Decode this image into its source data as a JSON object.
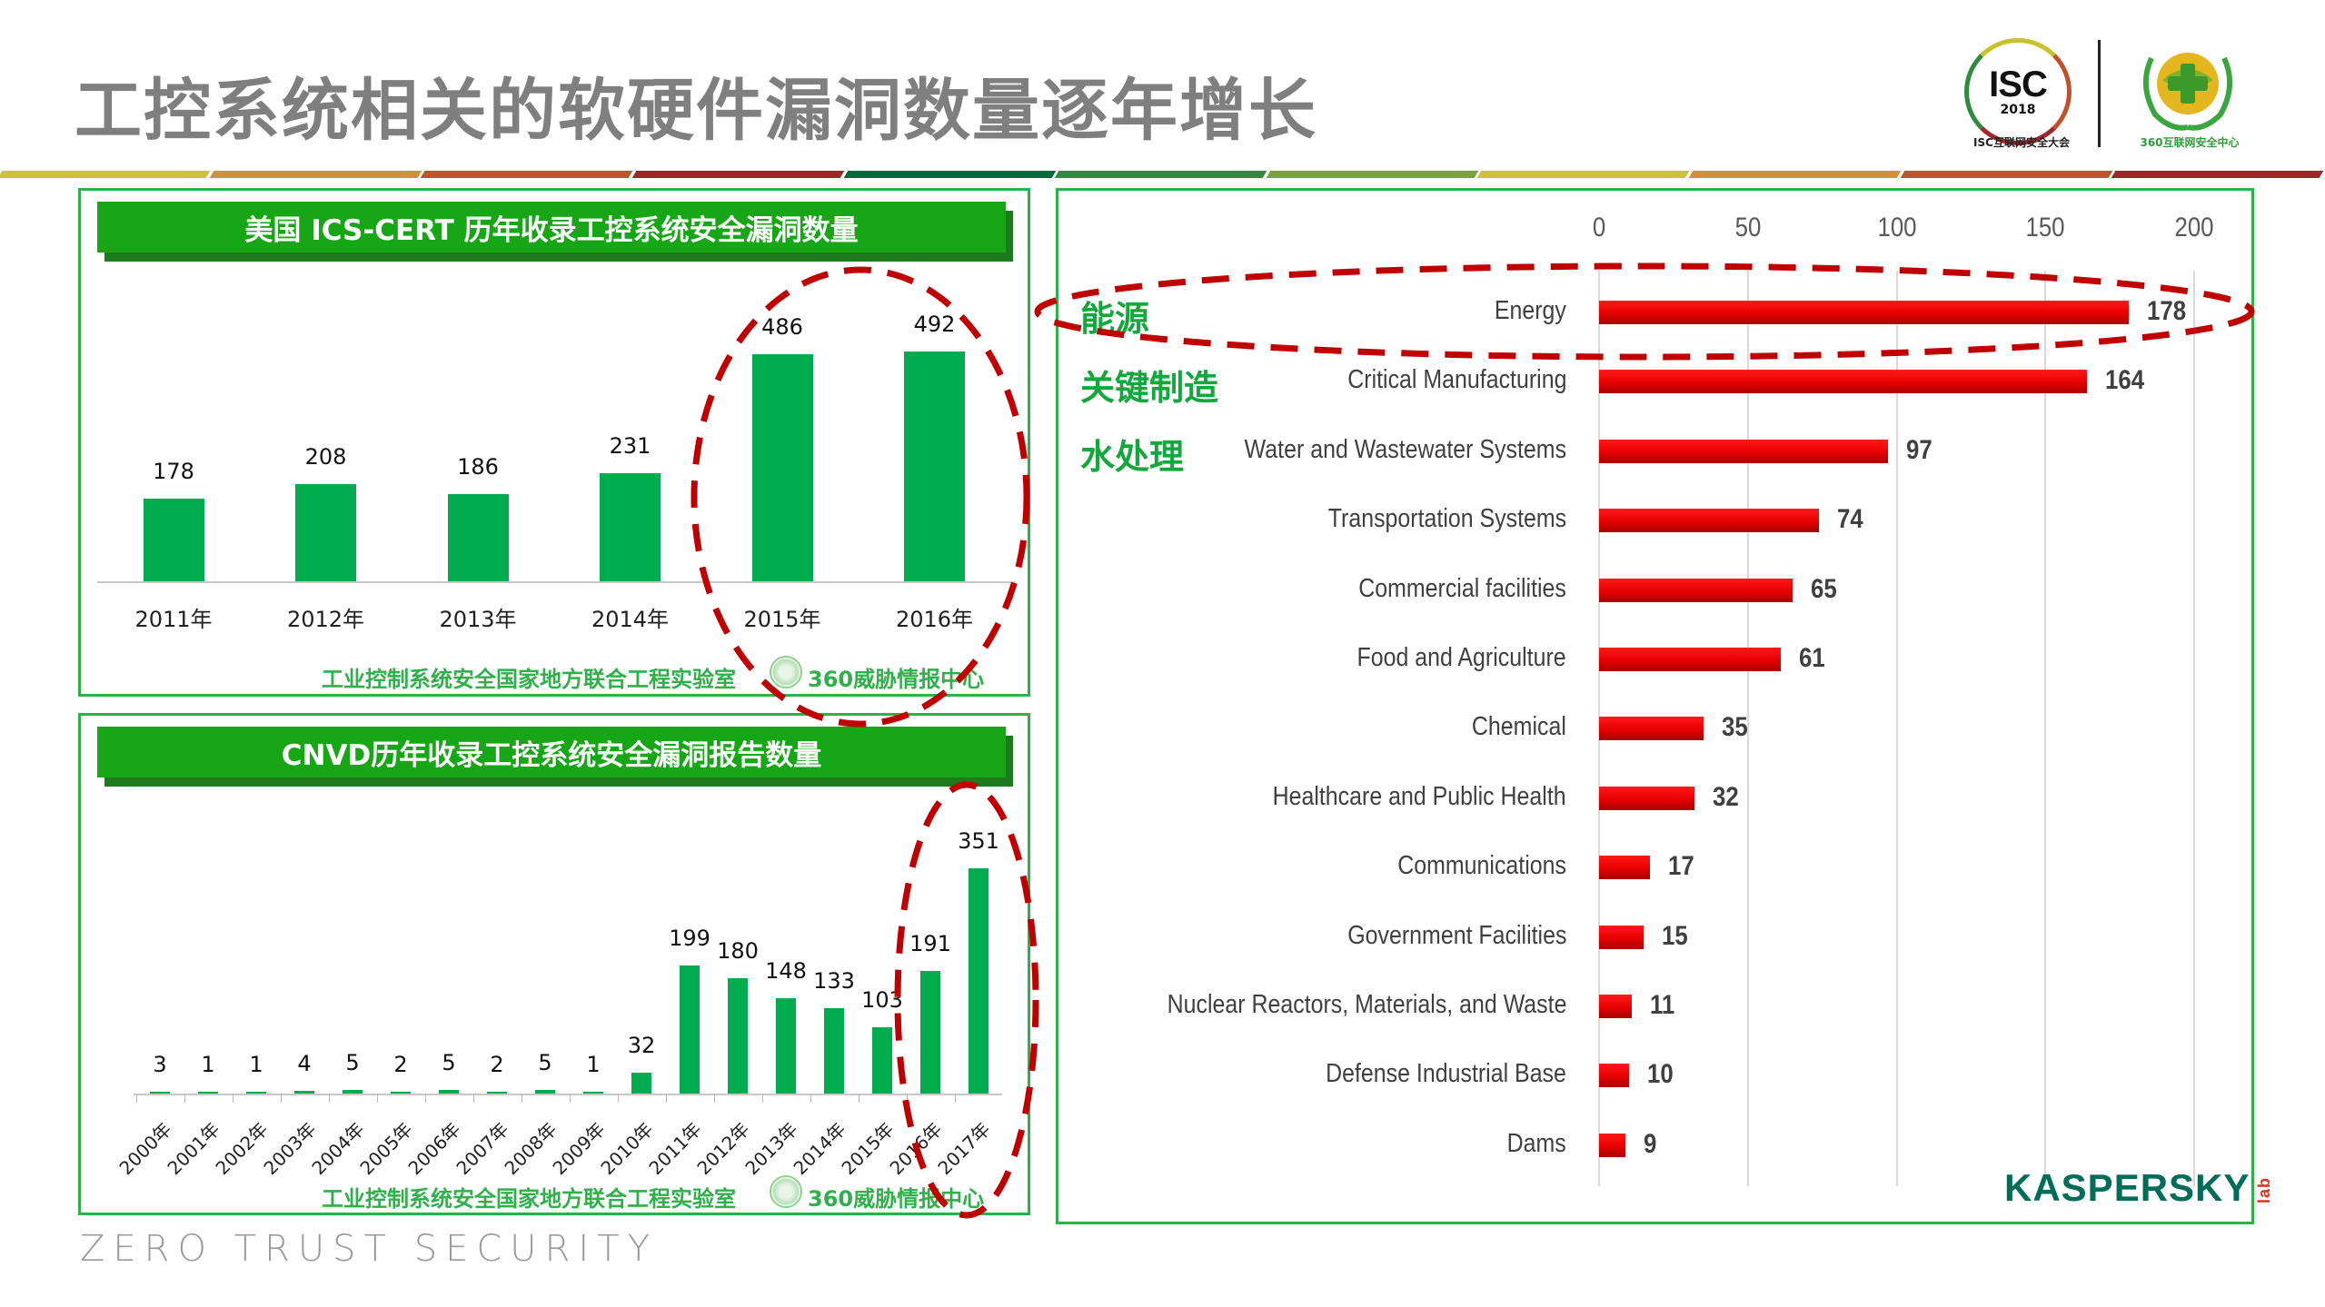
{
  "slide": {
    "title": "工控系统相关的软硬件漏洞数量逐年增长",
    "footer": "ZERO TRUST SECURITY",
    "stripe_colors": [
      "#cdc13a",
      "#d1913a",
      "#c2542a",
      "#a1262a",
      "#006b3a",
      "#2e8b3f",
      "#7aa33a",
      "#cdc13a",
      "#d1913a",
      "#c2542a",
      "#a1262a"
    ]
  },
  "logos": {
    "isc": {
      "main": "ISC",
      "year": "2018",
      "caption": "ISC互联网安全大会"
    },
    "center360": {
      "caption": "360互联网安全中心"
    },
    "kaspersky": {
      "text": "KASPERSKY",
      "suffix": "lab"
    }
  },
  "panels": {
    "ics_cert": {
      "header": "美国 ICS-CERT 历年收录工控系统安全漏洞数量",
      "credit_left": "工业控制系统安全国家地方联合工程实验室",
      "credit_right": "360威胁情报中心"
    },
    "cnvd": {
      "header": "CNVD历年收录工控系统安全漏洞报告数量",
      "credit_left": "工业控制系统安全国家地方联合工程实验室",
      "credit_right": "360威胁情报中心"
    },
    "kaspersky": {
      "annotations": [
        "能源",
        "关键制造",
        "水处理"
      ]
    }
  },
  "colors": {
    "green_bar": "#00ac4e",
    "red_bar": "#e60000",
    "panel_border": "#2bb34a",
    "header_green": "#16a616",
    "highlight_dash": "#c00000"
  },
  "chart_data": [
    {
      "type": "bar",
      "title": "美国 ICS-CERT 历年收录工控系统安全漏洞数量",
      "categories": [
        "2011年",
        "2012年",
        "2013年",
        "2014年",
        "2015年",
        "2016年"
      ],
      "values": [
        178,
        208,
        186,
        231,
        486,
        492
      ],
      "xlabel": "",
      "ylabel": "",
      "data_labels": true,
      "grid": false,
      "highlight": [
        "2015年",
        "2016年"
      ]
    },
    {
      "type": "bar",
      "title": "CNVD历年收录工控系统安全漏洞报告数量",
      "categories": [
        "2000年",
        "2001年",
        "2002年",
        "2003年",
        "2004年",
        "2005年",
        "2006年",
        "2007年",
        "2008年",
        "2009年",
        "2010年",
        "2011年",
        "2012年",
        "2013年",
        "2014年",
        "2015年",
        "2016年",
        "2017年"
      ],
      "values": [
        3,
        1,
        1,
        4,
        5,
        2,
        5,
        2,
        5,
        1,
        32,
        199,
        180,
        148,
        133,
        103,
        191,
        351
      ],
      "xlabel": "",
      "ylabel": "",
      "data_labels": true,
      "x_tick_rotation": -45,
      "grid": false,
      "highlight": [
        "2016年",
        "2017年"
      ]
    },
    {
      "type": "bar",
      "orientation": "horizontal",
      "title": "",
      "categories": [
        "Energy",
        "Critical Manufacturing",
        "Water and Wastewater Systems",
        "Transportation Systems",
        "Commercial facilities",
        "Food and Agriculture",
        "Chemical",
        "Healthcare and Public Health",
        "Communications",
        "Government Facilities",
        "Nuclear Reactors, Materials, and Waste",
        "Defense Industrial Base",
        "Dams"
      ],
      "values": [
        178,
        164,
        97,
        74,
        65,
        61,
        35,
        32,
        17,
        15,
        11,
        10,
        9
      ],
      "xlim": [
        0,
        200
      ],
      "x_ticks": [
        0,
        50,
        100,
        150,
        200
      ],
      "x_axis_position": "top",
      "grid": true,
      "data_labels": true,
      "annotations": [
        {
          "text": "能源",
          "category": "Energy"
        },
        {
          "text": "关键制造",
          "category": "Critical Manufacturing"
        },
        {
          "text": "水处理",
          "category": "Water and Wastewater Systems"
        }
      ],
      "highlight": [
        "Energy"
      ],
      "source_logo": "KASPERSKY lab"
    }
  ]
}
